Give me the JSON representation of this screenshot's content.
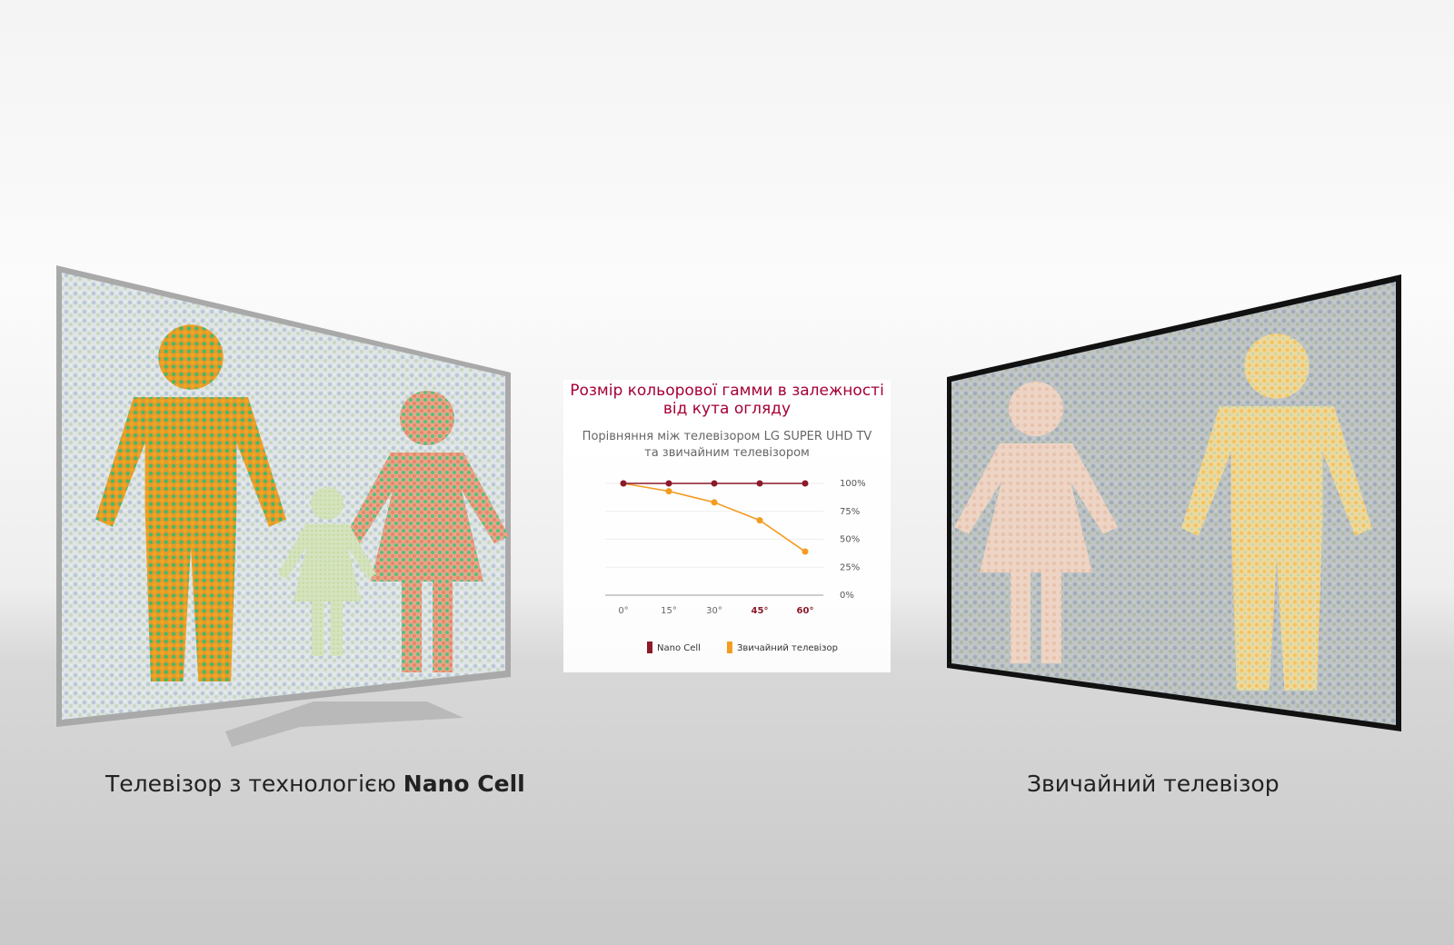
{
  "chart_data": {
    "type": "line",
    "title": "Розмір кольорової гамми в залежності від кута огляду",
    "subtitle": "Порівняння між телевізором LG SUPER UHD TV та звичайним телевізором",
    "categories": [
      "0°",
      "15°",
      "30°",
      "45°",
      "60°"
    ],
    "category_label_colors": [
      "#666666",
      "#666666",
      "#666666",
      "#8b1a2b",
      "#8b1a2b"
    ],
    "series": [
      {
        "name": "Nano Cell",
        "color": "#8b1a2b",
        "values": [
          100,
          100,
          100,
          100,
          100
        ]
      },
      {
        "name": "Звичайний телевізор",
        "color": "#f39c1f",
        "values": [
          100,
          93,
          83,
          67,
          39
        ]
      }
    ],
    "ylim": [
      0,
      100
    ],
    "yticks": [
      {
        "value": 0,
        "label": "0%"
      },
      {
        "value": 25,
        "label": "25%"
      },
      {
        "value": 50,
        "label": "50%"
      },
      {
        "value": 75,
        "label": "75%"
      },
      {
        "value": 100,
        "label": "100%"
      }
    ],
    "grid": true
  },
  "captions": {
    "left": {
      "text": "Телевізор з технологією",
      "emphasis": "Nano Cell"
    },
    "right": "Звичайний телевізор"
  }
}
